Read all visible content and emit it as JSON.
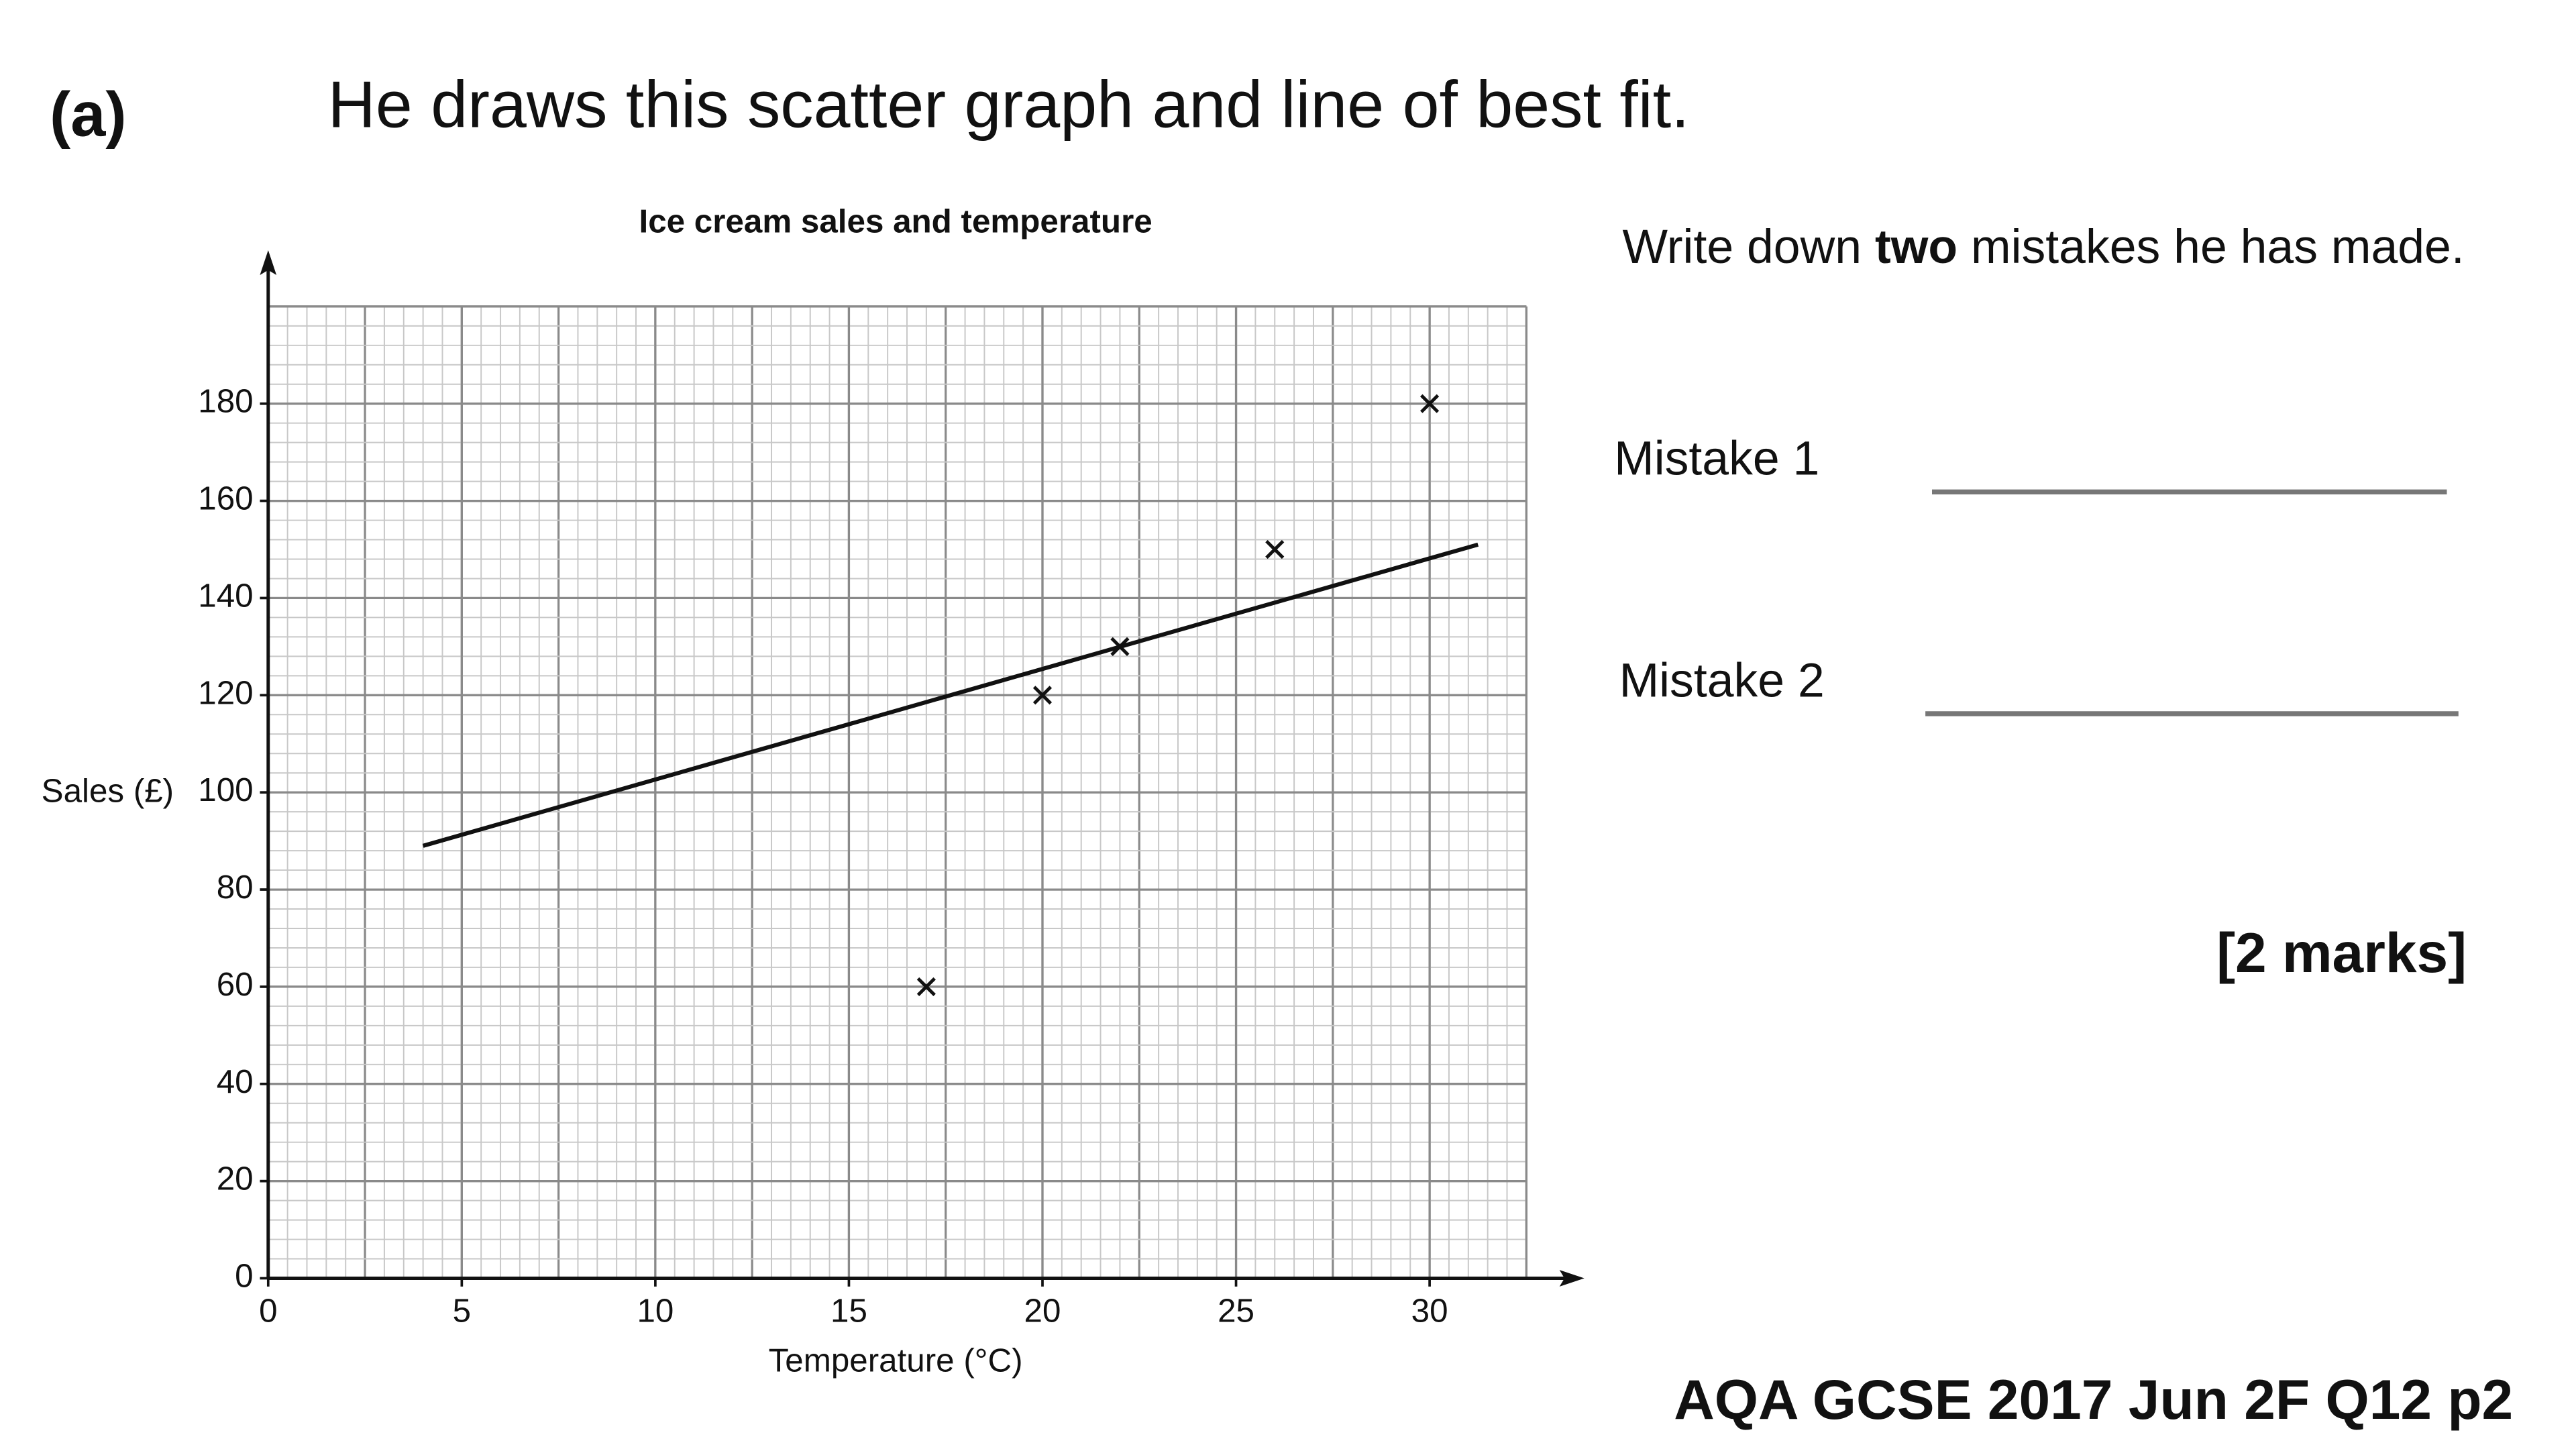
{
  "label": "(a)",
  "prompt": "He draws this scatter graph and line of best fit.",
  "chart_data": {
    "type": "scatter",
    "title": "Ice cream sales and temperature",
    "x_label": "Temperature (°C)",
    "y_label": "Sales (£)",
    "x": [
      17,
      20,
      22,
      26,
      30
    ],
    "values": [
      60,
      120,
      130,
      150,
      180
    ],
    "color": "#111111",
    "best_fit": {
      "x": [
        4,
        31.25
      ],
      "y": [
        89,
        151
      ]
    },
    "xlim": [
      0,
      32.5
    ],
    "ylim": [
      0,
      200
    ],
    "xticks": [
      0,
      5,
      10,
      15,
      20,
      25,
      30
    ],
    "yticks": [
      0,
      20,
      40,
      60,
      80,
      100,
      120,
      140,
      160,
      180
    ],
    "grid": true
  },
  "instruction": [
    "Write down ",
    "two",
    " mistakes he has made."
  ],
  "mistakes": [
    "Mistake 1",
    "Mistake 2"
  ],
  "marks": "[2 marks]",
  "source": "AQA GCSE 2017 Jun 2F Q12 p2"
}
